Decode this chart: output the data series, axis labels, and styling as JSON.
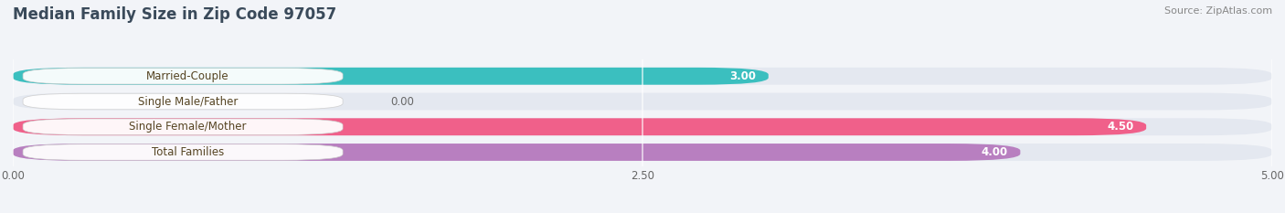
{
  "title": "Median Family Size in Zip Code 97057",
  "source_text": "Source: ZipAtlas.com",
  "categories": [
    "Married-Couple",
    "Single Male/Father",
    "Single Female/Mother",
    "Total Families"
  ],
  "values": [
    3.0,
    0.0,
    4.5,
    4.0
  ],
  "bar_colors": [
    "#3bbfbf",
    "#a8bce0",
    "#f0608a",
    "#b87fc0"
  ],
  "xlim": [
    0.0,
    5.0
  ],
  "xticks": [
    0.0,
    2.5,
    5.0
  ],
  "xtick_labels": [
    "0.00",
    "2.50",
    "5.00"
  ],
  "value_labels": [
    "3.00",
    "0.00",
    "4.50",
    "4.00"
  ],
  "background_color": "#f2f4f8",
  "bar_background": "#e4e8f0",
  "title_fontsize": 12,
  "label_fontsize": 8.5,
  "tick_fontsize": 8.5,
  "source_fontsize": 8,
  "bar_height": 0.68,
  "label_color": "#555533"
}
